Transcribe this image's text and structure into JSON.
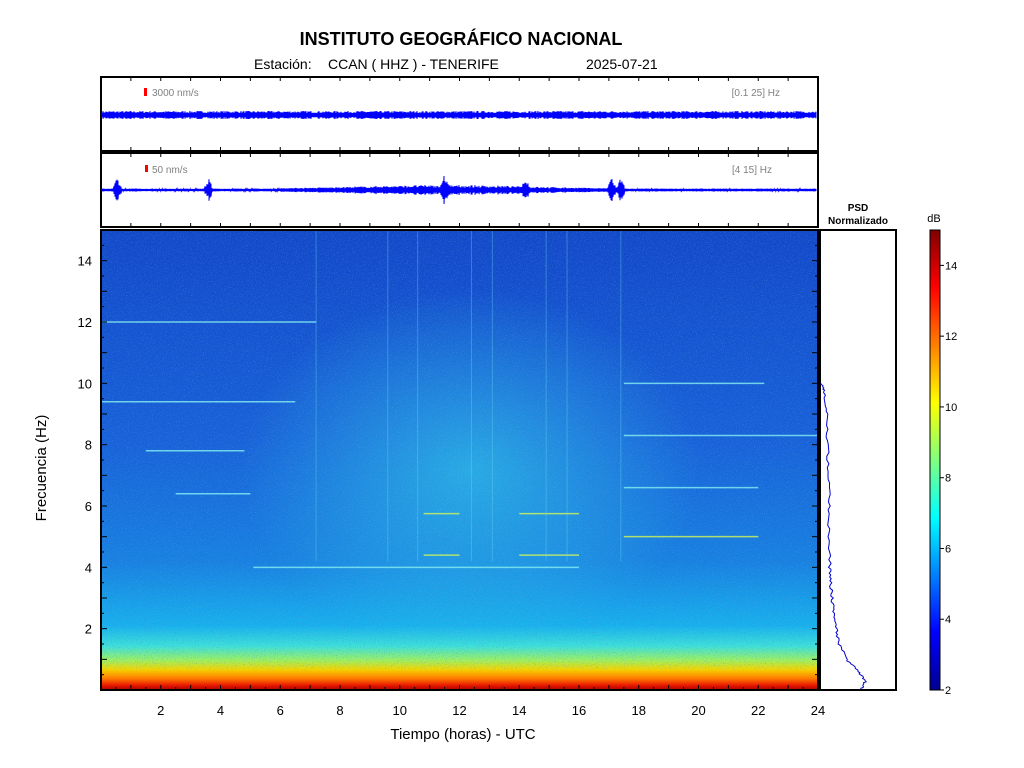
{
  "header": {
    "title": "INSTITUTO GEOGRÁFICO NACIONAL",
    "station_label": "Estación:",
    "station": "CCAN ( HHZ ) - TENERIFE",
    "date": "2025-07-21"
  },
  "colors": {
    "trace": "#0000ff",
    "scale_bar": "#ff0000",
    "frame": "#000000"
  },
  "chart_data": [
    {
      "type": "line",
      "name": "seismogram-broadband",
      "scale_label": "3000 nm/s",
      "filter_label": "[0.1 25] Hz",
      "xlim": [
        0,
        24
      ]
    },
    {
      "type": "line",
      "name": "seismogram-highpass",
      "scale_label": "50 nm/s",
      "filter_label": "[4 15] Hz",
      "xlim": [
        0,
        24
      ],
      "events": [
        0.55,
        3.6,
        11.5,
        14.2,
        17.1,
        17.4
      ]
    },
    {
      "type": "heatmap",
      "xlabel": "Tiempo (horas) - UTC",
      "ylabel": "Frecuencia  (Hz)",
      "xlim": [
        0,
        24
      ],
      "ylim": [
        0,
        15
      ],
      "xticks": [
        2,
        4,
        6,
        8,
        10,
        12,
        14,
        16,
        18,
        20,
        22,
        24
      ],
      "yticks": [
        2,
        4,
        6,
        8,
        10,
        12,
        14
      ],
      "colorbar": {
        "label": "dB",
        "range": [
          2,
          15
        ],
        "ticks": [
          2,
          4,
          6,
          8,
          10,
          12,
          14
        ]
      },
      "spectral_lines": [
        {
          "freq": 12.0,
          "t0": 0.0,
          "t1": 7.2
        },
        {
          "freq": 9.4,
          "t0": 0.0,
          "t1": 6.5
        },
        {
          "freq": 7.8,
          "t0": 1.5,
          "t1": 4.8
        },
        {
          "freq": 6.4,
          "t0": 2.5,
          "t1": 5.0
        },
        {
          "freq": 4.0,
          "t0": 5.1,
          "t1": 16.0
        },
        {
          "freq": 5.75,
          "t0": 10.8,
          "t1": 12.0
        },
        {
          "freq": 5.75,
          "t0": 14.0,
          "t1": 16.0
        },
        {
          "freq": 4.4,
          "t0": 10.8,
          "t1": 12.0
        },
        {
          "freq": 4.4,
          "t0": 14.0,
          "t1": 16.0
        },
        {
          "freq": 10.0,
          "t0": 17.5,
          "t1": 22.2
        },
        {
          "freq": 6.6,
          "t0": 17.5,
          "t1": 22.0
        },
        {
          "freq": 5.0,
          "t0": 17.5,
          "t1": 22.0
        },
        {
          "freq": 8.3,
          "t0": 17.5,
          "t1": 24.0
        }
      ]
    },
    {
      "type": "line",
      "name": "psd-normalizado",
      "title_line1": "PSD",
      "title_line2": "Normalizado",
      "ylim": [
        0,
        15
      ],
      "freq": [
        0.05,
        0.3,
        0.6,
        1.0,
        1.5,
        2.0,
        2.5,
        3.0,
        3.5,
        4.0,
        5.0,
        6.0,
        7.0,
        8.0,
        9.0,
        9.7,
        10.0
      ],
      "psd": [
        0.55,
        0.6,
        0.5,
        0.35,
        0.25,
        0.2,
        0.17,
        0.15,
        0.13,
        0.12,
        0.11,
        0.11,
        0.1,
        0.09,
        0.08,
        0.04,
        0.0
      ]
    }
  ]
}
